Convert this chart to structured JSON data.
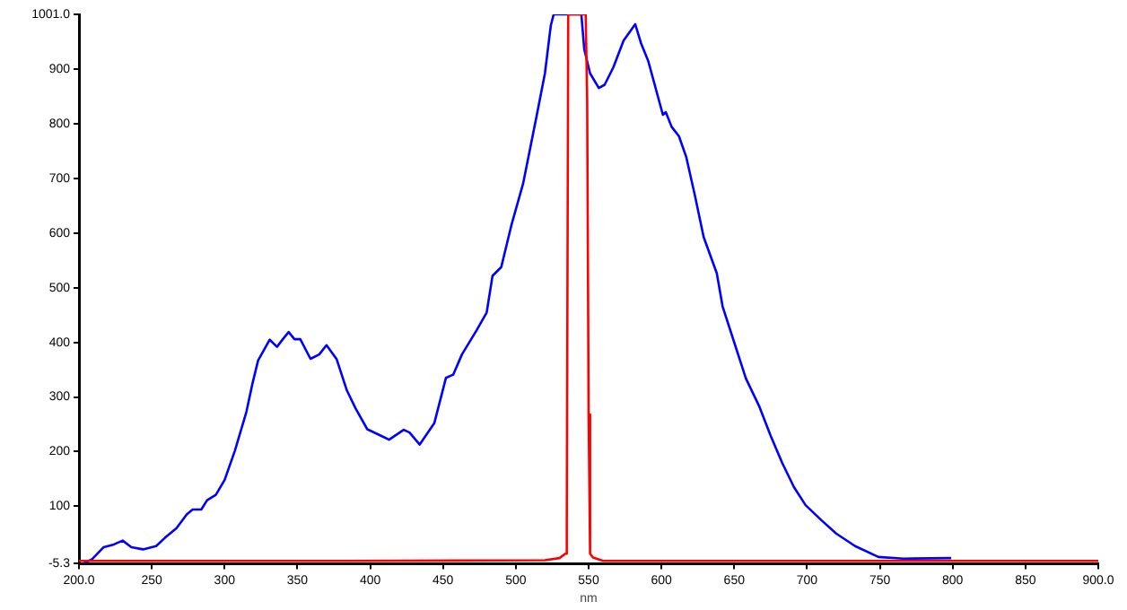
{
  "chart_data": {
    "type": "line",
    "xlabel": "nm",
    "xlim": [
      200,
      900
    ],
    "ylim": [
      -5.3,
      1001
    ],
    "xticks": [
      {
        "value": 200,
        "label": "200.0"
      },
      250,
      300,
      350,
      400,
      450,
      500,
      550,
      600,
      650,
      700,
      750,
      800,
      850,
      {
        "value": 900,
        "label": "900.0"
      }
    ],
    "yticks": [
      -5.3,
      100,
      200,
      300,
      400,
      500,
      600,
      700,
      800,
      900,
      {
        "value": 1001,
        "label": "1001.0"
      }
    ],
    "grid": false,
    "legend": false,
    "marker": "none",
    "line_style": "solid",
    "series": [
      {
        "color": "#0000ff",
        "x": [
          203,
          209,
          217,
          224,
          230,
          236,
          244,
          253,
          259,
          267,
          274,
          278,
          284,
          288,
          294,
          300,
          307,
          315,
          319,
          323,
          331,
          336,
          340,
          344,
          348,
          352,
          359,
          365,
          370,
          377,
          384,
          390,
          398,
          409,
          413,
          423,
          427,
          434,
          444,
          452,
          457,
          463,
          473,
          480,
          484,
          490,
          497,
          505,
          514,
          520,
          524,
          526,
          545,
          547,
          551,
          557,
          561,
          567,
          574,
          582,
          586,
          591,
          596,
          601,
          603,
          607,
          612,
          617,
          623,
          629,
          638,
          642,
          650,
          658,
          667,
          675,
          683,
          691,
          699,
          710,
          720,
          733,
          749,
          766,
          799
        ],
        "values": [
          -5,
          3,
          25,
          30,
          37,
          25,
          21,
          27,
          42,
          60,
          85,
          94,
          94,
          111,
          121,
          148,
          201,
          273,
          323,
          367,
          405,
          392,
          406,
          419,
          406,
          406,
          370,
          378,
          395,
          369,
          312,
          279,
          241,
          227,
          222,
          240,
          235,
          213,
          252,
          335,
          341,
          378,
          422,
          455,
          522,
          538,
          615,
          691,
          811,
          893,
          980,
          1001,
          1001,
          937,
          893,
          866,
          872,
          904,
          953,
          983,
          948,
          915,
          866,
          817,
          822,
          795,
          778,
          740,
          669,
          593,
          527,
          466,
          400,
          334,
          284,
          229,
          179,
          135,
          102,
          74,
          50,
          27,
          7,
          4,
          5
        ]
      },
      {
        "color": "#ff0000",
        "x": [
          200,
          385,
          520,
          530,
          534,
          535,
          536,
          548,
          549,
          550,
          551,
          553,
          560,
          900
        ],
        "values": [
          0,
          0,
          1,
          5,
          13,
          65,
          1001,
          1001,
          844,
          268,
          13,
          6,
          0,
          0
        ]
      }
    ]
  }
}
